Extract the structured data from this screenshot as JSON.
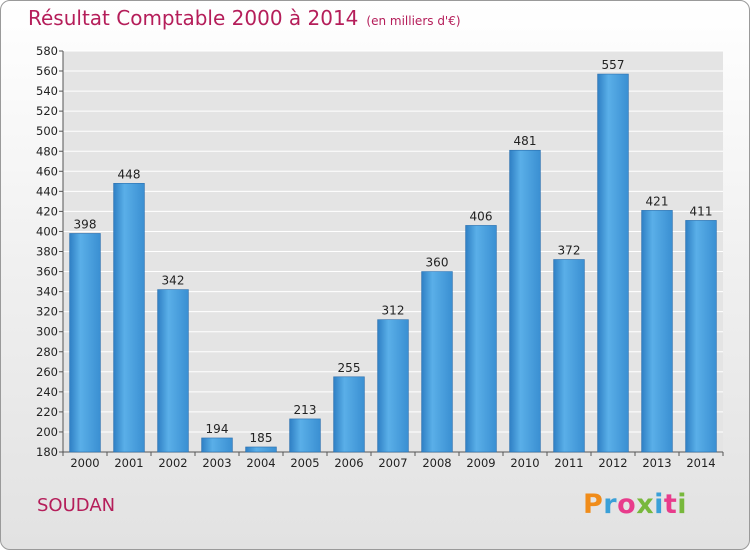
{
  "title": "Résultat Comptable 2000 à 2014",
  "subtitle": "(en milliers d'€)",
  "commune": "SOUDAN",
  "logo": {
    "letters": [
      "P",
      "r",
      "o",
      "x",
      "i",
      "t",
      "i"
    ],
    "colors": [
      "#f08c1a",
      "#3aa0d8",
      "#e83c8c",
      "#78b83c",
      "#3aa0d8",
      "#e83c8c",
      "#78b83c"
    ]
  },
  "chart_data": {
    "type": "bar",
    "title": "Résultat Comptable 2000 à 2014",
    "subtitle": "(en milliers d'€)",
    "categories": [
      "2000",
      "2001",
      "2002",
      "2003",
      "2004",
      "2005",
      "2006",
      "2007",
      "2008",
      "2009",
      "2010",
      "2011",
      "2012",
      "2013",
      "2014"
    ],
    "values": [
      398,
      448,
      342,
      194,
      185,
      213,
      255,
      312,
      360,
      406,
      481,
      372,
      557,
      421,
      411
    ],
    "ylim": [
      180,
      580
    ],
    "ytick_step": 20,
    "grid": true,
    "bar_color": "#3d95d8",
    "grid_color": "#ffffff",
    "plot_bg": "#e4e4e4"
  }
}
